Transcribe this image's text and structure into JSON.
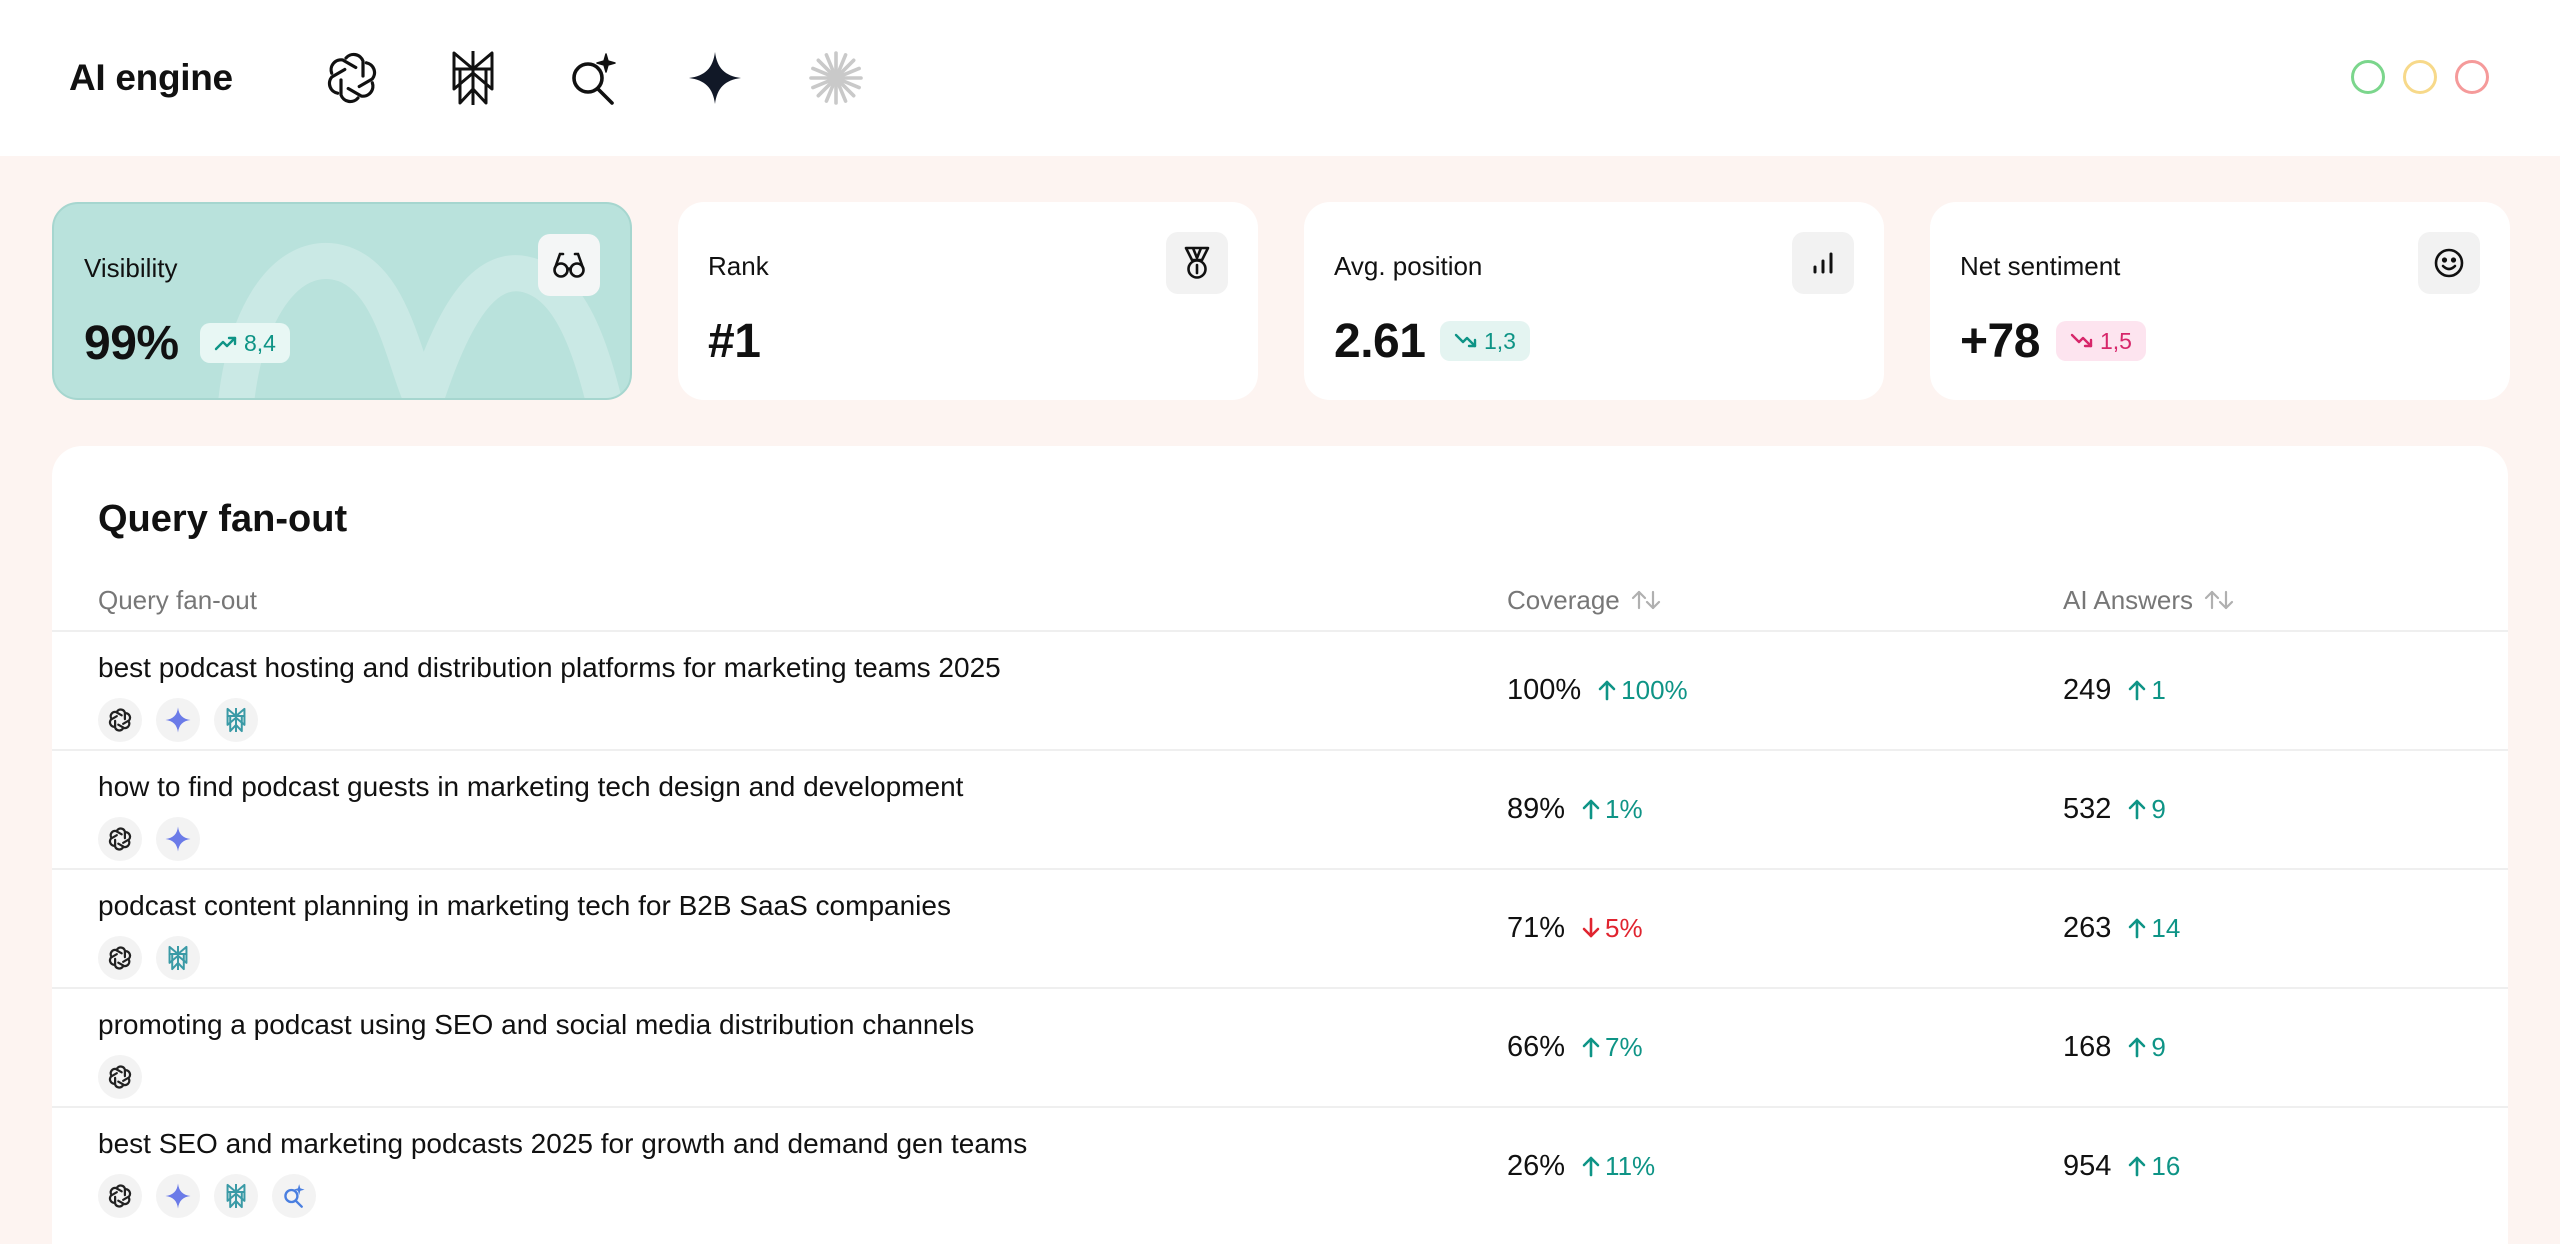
{
  "app": {
    "title": "AI engine",
    "engines": [
      {
        "name": "chatgpt-icon"
      },
      {
        "name": "perplexity-icon"
      },
      {
        "name": "ai-search-icon"
      },
      {
        "name": "gemini-icon"
      },
      {
        "name": "claude-icon"
      }
    ],
    "window_controls": [
      {
        "name": "green-dot",
        "color": "#7bd68c"
      },
      {
        "name": "yellow-dot",
        "color": "#f7d98a"
      },
      {
        "name": "red-dot",
        "color": "#f59a9a"
      }
    ]
  },
  "kpis": {
    "visibility": {
      "label": "Visibility",
      "value": "99%",
      "delta": "8,4",
      "direction": "up",
      "icon": "glasses-icon"
    },
    "rank": {
      "label": "Rank",
      "value": "#1",
      "icon": "medal-icon"
    },
    "avg_position": {
      "label": "Avg. position",
      "value": "2.61",
      "delta": "1,3",
      "direction": "up",
      "icon": "bar-chart-icon"
    },
    "net_sentiment": {
      "label": "Net sentiment",
      "value": "+78",
      "delta": "1,5",
      "direction": "down",
      "icon": "smiley-icon"
    }
  },
  "table": {
    "title": "Query fan-out",
    "columns": {
      "query": "Query fan-out",
      "coverage": "Coverage",
      "answers": "AI Answers"
    },
    "rows": [
      {
        "query": "best podcast hosting and distribution platforms for marketing teams 2025",
        "engines": [
          "chatgpt",
          "gemini",
          "perplexity"
        ],
        "coverage": "100%",
        "coverage_delta": "100%",
        "coverage_dir": "up",
        "answers": "249",
        "answers_delta": "1",
        "answers_dir": "up"
      },
      {
        "query": "how to find podcast guests in marketing tech design and development",
        "engines": [
          "chatgpt",
          "gemini"
        ],
        "coverage": "89%",
        "coverage_delta": "1%",
        "coverage_dir": "up",
        "answers": "532",
        "answers_delta": "9",
        "answers_dir": "up"
      },
      {
        "query": "podcast content planning in marketing tech for B2B SaaS companies",
        "engines": [
          "chatgpt",
          "perplexity"
        ],
        "coverage": "71%",
        "coverage_delta": "5%",
        "coverage_dir": "down",
        "answers": "263",
        "answers_delta": "14",
        "answers_dir": "up"
      },
      {
        "query": "promoting a podcast using SEO and social media distribution channels",
        "engines": [
          "chatgpt"
        ],
        "coverage": "66%",
        "coverage_delta": "7%",
        "coverage_dir": "up",
        "answers": "168",
        "answers_delta": "9",
        "answers_dir": "up"
      },
      {
        "query": "best SEO and marketing podcasts 2025 for growth and demand gen teams",
        "engines": [
          "chatgpt",
          "gemini",
          "perplexity",
          "ai-search"
        ],
        "coverage": "26%",
        "coverage_delta": "11%",
        "coverage_dir": "up",
        "answers": "954",
        "answers_delta": "16",
        "answers_dir": "up"
      }
    ]
  },
  "colors": {
    "accent_teal": "#0e9486",
    "negative_red": "#e0242f",
    "negative_pink": "#d7266a",
    "visibility_card": "#b9e2dc",
    "gemini_blue": "#6b7be8",
    "perplexity_teal": "#3a9aa6",
    "search_blue": "#4a7fe0"
  }
}
